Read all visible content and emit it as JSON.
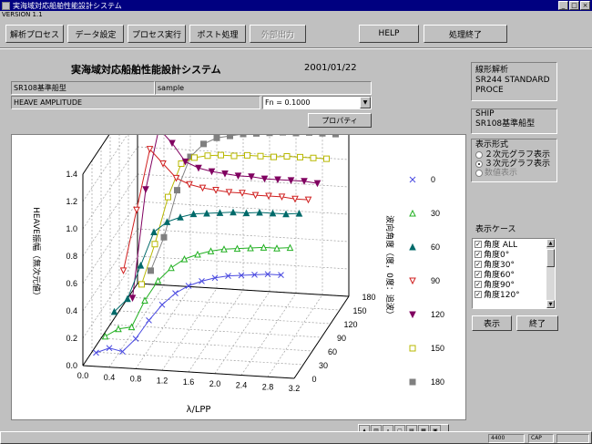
{
  "window": {
    "title": "実海域対応船舶性能設計システム",
    "version": "VERSION 1.1",
    "minimize": "_",
    "maximize": "□",
    "close": "×"
  },
  "toolbar": {
    "analysis_process": "解析プロセス",
    "data_settings": "データ設定",
    "process_run": "プロセス実行",
    "post_process": "ポスト処理",
    "external_output": "外部出力",
    "help": "HELP",
    "finish": "処理終了"
  },
  "header": {
    "title": "実海域対応船舶性能設計システム",
    "date": "2001/01/22"
  },
  "info": {
    "ship_model": "SR108基準船型",
    "sample": "sample",
    "quantity": "HEAVE AMPLITUDE",
    "fn_value": "Fn = 0.1000",
    "property_button": "プロパティ"
  },
  "analysis_box": {
    "line1": "線形解析",
    "line2": "SR244 STANDARD",
    "line3": "PROCE"
  },
  "ship_box": {
    "label": "SHIP",
    "value": "SR108基準船型"
  },
  "display_format": {
    "title": "表示形式",
    "options": [
      "２次元グラフ表示",
      "３次元グラフ表示",
      "数値表示"
    ],
    "selected": 1
  },
  "display_case": {
    "title": "表示ケース",
    "items": [
      "角度 ALL",
      "角度0°",
      "角度30°",
      "角度60°",
      "角度90°",
      "角度120°"
    ],
    "display_button": "表示",
    "end_button": "終了"
  },
  "status": {
    "panel1": "4400",
    "panel2": "CAP"
  },
  "colors": {
    "s0": "#4a4ae0",
    "s30": "#22b022",
    "s60": "#006a6a",
    "s90": "#d02020",
    "s120": "#800060",
    "s150": "#b8b800",
    "s180": "#808080"
  },
  "chart_data": {
    "type": "line",
    "xlabel": "λ/LPP",
    "ylabel": "HEAVE振幅（無次元値）",
    "zlabel": "波向角度（度，0度：追波）",
    "x": [
      0.2,
      0.4,
      0.6,
      0.8,
      1.0,
      1.2,
      1.4,
      1.6,
      1.8,
      2.0,
      2.2,
      2.4,
      2.6,
      2.8,
      3.0
    ],
    "xticks": [
      "0.0",
      "0.4",
      "0.8",
      "1.2",
      "1.6",
      "2.0",
      "2.4",
      "2.8",
      "3.2"
    ],
    "yticks": [
      "0.0",
      "0.2",
      "0.4",
      "0.6",
      "0.8",
      "1.0",
      "1.2",
      "1.4"
    ],
    "zticks": [
      "0",
      "30",
      "60",
      "90",
      "120",
      "150",
      "180"
    ],
    "ylim": [
      0,
      1.4
    ],
    "series": [
      {
        "name": "0",
        "angle": 0,
        "marker": "x",
        "values": [
          0.1,
          0.14,
          0.12,
          0.22,
          0.36,
          0.48,
          0.57,
          0.63,
          0.67,
          0.7,
          0.72,
          0.73,
          0.74,
          0.75,
          0.75
        ]
      },
      {
        "name": "30",
        "angle": 30,
        "marker": "tri-up-open",
        "values": [
          0.12,
          0.18,
          0.2,
          0.4,
          0.55,
          0.65,
          0.72,
          0.76,
          0.79,
          0.81,
          0.82,
          0.83,
          0.84,
          0.84,
          0.85
        ]
      },
      {
        "name": "60",
        "angle": 60,
        "marker": "tri-up-filled",
        "values": [
          0.2,
          0.3,
          0.55,
          0.8,
          0.88,
          0.92,
          0.95,
          0.96,
          0.97,
          0.98,
          0.98,
          0.99,
          0.99,
          0.99,
          1.0
        ]
      },
      {
        "name": "90",
        "angle": 90,
        "marker": "tri-down-open",
        "values": [
          0.4,
          0.85,
          1.3,
          1.2,
          1.1,
          1.06,
          1.04,
          1.03,
          1.02,
          1.02,
          1.01,
          1.01,
          1.01,
          1.0,
          1.0
        ]
      },
      {
        "name": "120",
        "angle": 120,
        "marker": "tri-down-filled",
        "values": [
          0.1,
          0.9,
          1.35,
          1.25,
          1.12,
          1.08,
          1.06,
          1.05,
          1.04,
          1.04,
          1.03,
          1.03,
          1.03,
          1.03,
          1.02
        ]
      },
      {
        "name": "150",
        "angle": 150,
        "marker": "square-open",
        "values": [
          0.1,
          0.4,
          0.75,
          1.0,
          1.05,
          1.07,
          1.08,
          1.08,
          1.09,
          1.09,
          1.09,
          1.1,
          1.1,
          1.1,
          1.1
        ]
      },
      {
        "name": "180",
        "angle": 180,
        "marker": "square-filled",
        "values": [
          0.1,
          0.35,
          0.7,
          0.95,
          1.05,
          1.1,
          1.12,
          1.14,
          1.15,
          1.16,
          1.17,
          1.17,
          1.18,
          1.18,
          1.18
        ]
      }
    ],
    "legend": "right"
  }
}
